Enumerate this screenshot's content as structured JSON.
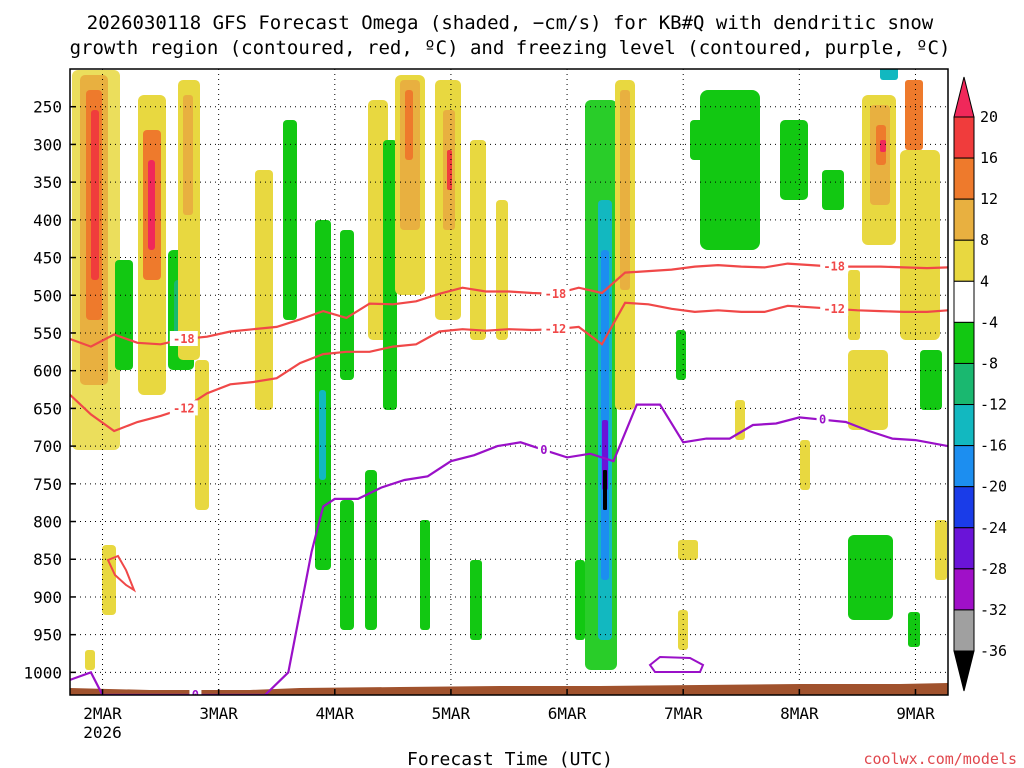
{
  "chart_data": {
    "type": "heatmap",
    "title_lines": [
      "2026030118 GFS Forecast Omega (shaded, −cm/s) for KB#Q with dendritic snow",
      "growth region (contoured, red, ºC) and freezing level (contoured, purple, ºC)"
    ],
    "xlabel": "Forecast Time (UTC)",
    "ylabel": "",
    "x_range_days": [
      0.72,
      8.28
    ],
    "x_tick_labels": [
      {
        "day": 1,
        "label": "2MAR",
        "sub": "2026"
      },
      {
        "day": 2,
        "label": "3MAR"
      },
      {
        "day": 3,
        "label": "4MAR"
      },
      {
        "day": 4,
        "label": "5MAR"
      },
      {
        "day": 5,
        "label": "6MAR"
      },
      {
        "day": 6,
        "label": "7MAR"
      },
      {
        "day": 7,
        "label": "8MAR"
      },
      {
        "day": 8,
        "label": "9MAR"
      }
    ],
    "y_ticks_hpa": [
      250,
      300,
      350,
      400,
      450,
      500,
      550,
      600,
      650,
      700,
      750,
      800,
      850,
      900,
      950,
      1000
    ],
    "y_range_hpa": [
      200,
      1030
    ],
    "colorbar": {
      "levels": [
        20,
        16,
        12,
        8,
        4,
        -4,
        -8,
        -12,
        -16,
        -20,
        -24,
        -28,
        -32,
        -36
      ],
      "colors": [
        "#f0285a",
        "#f03c3c",
        "#ee7a2c",
        "#e8b040",
        "#e8d840",
        "#ffffff",
        "#12c812",
        "#1ab870",
        "#12b8c0",
        "#1c8ef0",
        "#1a3ce8",
        "#6a14d8",
        "#a010c8",
        "#a0a0a0",
        "#000000"
      ]
    },
    "series": [
      {
        "name": "-18 °C isotherm",
        "color": "#f04848",
        "label": "-18",
        "x": [
          0.72,
          0.9,
          1.1,
          1.3,
          1.5,
          1.7,
          1.9,
          2.1,
          2.3,
          2.5,
          2.7,
          2.9,
          3.1,
          3.3,
          3.5,
          3.7,
          3.9,
          4.1,
          4.3,
          4.5,
          4.7,
          4.9,
          5.1,
          5.3,
          5.5,
          5.7,
          5.9,
          6.1,
          6.3,
          6.5,
          6.7,
          6.9,
          7.1,
          7.3,
          7.5,
          7.7,
          7.9,
          8.1,
          8.28
        ],
        "y": [
          558,
          568,
          552,
          563,
          565,
          558,
          555,
          548,
          545,
          542,
          532,
          521,
          530,
          511,
          512,
          508,
          498,
          490,
          495,
          495,
          497,
          498,
          490,
          497,
          470,
          468,
          466,
          462,
          460,
          462,
          463,
          458,
          460,
          462,
          462,
          462,
          463,
          464,
          463
        ]
      },
      {
        "name": "-12 °C isotherm",
        "color": "#f04848",
        "label": "-12",
        "x": [
          0.72,
          0.9,
          1.1,
          1.3,
          1.5,
          1.7,
          1.9,
          2.1,
          2.3,
          2.5,
          2.7,
          2.9,
          3.1,
          3.3,
          3.5,
          3.7,
          3.9,
          4.1,
          4.3,
          4.5,
          4.7,
          4.9,
          5.1,
          5.3,
          5.5,
          5.7,
          5.9,
          6.1,
          6.3,
          6.5,
          6.7,
          6.9,
          7.1,
          7.3,
          7.5,
          7.7,
          7.9,
          8.1,
          8.28
        ],
        "y": [
          632,
          658,
          680,
          668,
          660,
          650,
          630,
          618,
          615,
          610,
          590,
          578,
          575,
          575,
          568,
          565,
          548,
          545,
          547,
          545,
          546,
          545,
          542,
          565,
          510,
          512,
          518,
          522,
          520,
          522,
          522,
          514,
          516,
          518,
          520,
          521,
          522,
          522,
          520
        ]
      },
      {
        "name": "0 °C freezing level",
        "color": "#9a10c8",
        "label": "0",
        "x": [
          0.72,
          0.9,
          1.0,
          1.2,
          1.4,
          1.6,
          1.8,
          2.0,
          2.2,
          2.4,
          2.6,
          2.8,
          2.9,
          3.0,
          3.2,
          3.4,
          3.6,
          3.8,
          4.0,
          4.2,
          4.4,
          4.6,
          4.8,
          5.0,
          5.2,
          5.4,
          5.6,
          5.8,
          6.0,
          6.2,
          6.4,
          6.6,
          6.8,
          7.0,
          7.2,
          7.4,
          7.6,
          7.8,
          8.0,
          8.28
        ],
        "y": [
          1010,
          1000,
          1030,
          1030,
          1030,
          1030,
          1030,
          1030,
          1030,
          1030,
          1000,
          840,
          780,
          770,
          770,
          755,
          745,
          740,
          720,
          712,
          700,
          695,
          705,
          715,
          710,
          720,
          645,
          645,
          695,
          690,
          690,
          672,
          670,
          662,
          665,
          668,
          680,
          690,
          692,
          700
        ]
      }
    ]
  },
  "credit": "coolwx.com/models"
}
